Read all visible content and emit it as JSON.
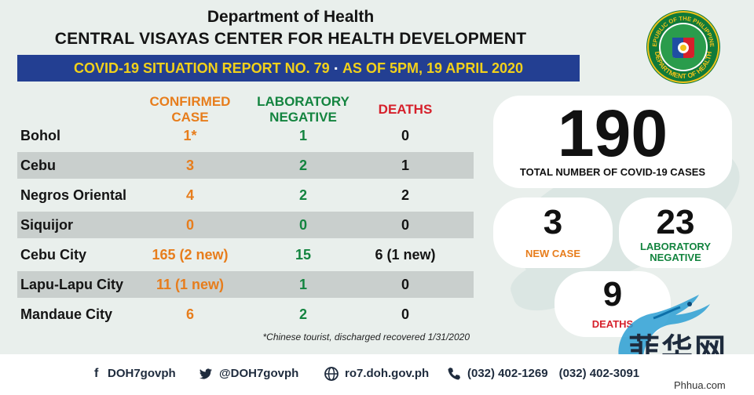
{
  "header": {
    "line1": "Department of Health",
    "line2": "CENTRAL VISAYAS CENTER FOR HEALTH DEVELOPMENT",
    "banner_left": "COVID-19 SITUATION REPORT NO. 79",
    "banner_sep": "▪",
    "banner_right": "AS OF 5PM, 19 APRIL 2020"
  },
  "seal": {
    "top_text": "REPUBLIC OF THE PHILIPPINES",
    "bottom_text": "DEPARTMENT OF HEALTH"
  },
  "columns": {
    "confirmed": [
      "CONFIRMED",
      "CASE"
    ],
    "negative": [
      "LABORATORY",
      "NEGATIVE"
    ],
    "deaths": "DEATHS"
  },
  "rows": [
    {
      "place": "Bohol",
      "confirmed": "1*",
      "negative": "1",
      "deaths": "0"
    },
    {
      "place": "Cebu",
      "confirmed": "3",
      "negative": "2",
      "deaths": "1"
    },
    {
      "place": "Negros Oriental",
      "confirmed": "4",
      "negative": "2",
      "deaths": "2"
    },
    {
      "place": "Siquijor",
      "confirmed": "0",
      "negative": "0",
      "deaths": "0"
    },
    {
      "place": "Cebu City",
      "confirmed": "165 (2 new)",
      "negative": "15",
      "deaths": "6 (1 new)"
    },
    {
      "place": "Lapu-Lapu City",
      "confirmed": "11 (1 new)",
      "negative": "1",
      "deaths": "0"
    },
    {
      "place": "Mandaue City",
      "confirmed": "6",
      "negative": "2",
      "deaths": "0"
    }
  ],
  "footnote": "*Chinese tourist, discharged recovered 1/31/2020",
  "summary": {
    "total_value": "190",
    "total_label": "TOTAL NUMBER OF COVID-19 CASES",
    "new_value": "3",
    "new_label": "NEW CASE",
    "neg_value": "23",
    "neg_label_1": "LABORATORY",
    "neg_label_2": "NEGATIVE",
    "deaths_value": "9",
    "deaths_label": "DEATHS"
  },
  "footer": {
    "facebook": "DOH7govph",
    "twitter": "@DOH7govph",
    "website": "ro7.doh.gov.ph",
    "phone1": "(032) 402-1269",
    "phone2": "(032) 402-3091"
  },
  "watermark": {
    "chars": "菲华网",
    "url": "Phhua.com"
  },
  "colors": {
    "banner": "#233f92",
    "banner_text": "#f2d11a",
    "confirmed": "#e77d1c",
    "negative": "#13843f",
    "deaths_head": "#d6202b"
  }
}
